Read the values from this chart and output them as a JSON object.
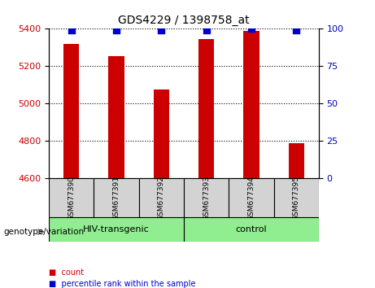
{
  "title": "GDS4229 / 1398758_at",
  "categories": [
    "GSM677390",
    "GSM677391",
    "GSM677392",
    "GSM677393",
    "GSM677394",
    "GSM677395"
  ],
  "count_values": [
    5320,
    5255,
    5075,
    5345,
    5390,
    4790
  ],
  "percentile_values": [
    99,
    99,
    99,
    99,
    100,
    99
  ],
  "ylim_left": [
    4600,
    5400
  ],
  "ylim_right": [
    0,
    100
  ],
  "yticks_left": [
    4600,
    4800,
    5000,
    5200,
    5400
  ],
  "yticks_right": [
    0,
    25,
    50,
    75,
    100
  ],
  "groups": [
    {
      "label": "HIV-transgenic",
      "start": 0,
      "end": 3,
      "color": "#90EE90"
    },
    {
      "label": "control",
      "start": 3,
      "end": 6,
      "color": "#90EE90"
    }
  ],
  "group_label_prefix": "genotype/variation",
  "bar_color_red": "#CC0000",
  "bar_color_blue": "#0000CC",
  "bar_width": 0.35,
  "background_plot": "#ffffff",
  "tick_color_left": "#CC0000",
  "tick_color_right": "#0000CC",
  "legend_items": [
    {
      "label": "count",
      "color": "#CC0000"
    },
    {
      "label": "percentile rank within the sample",
      "color": "#0000CC"
    }
  ],
  "grid_color": "#000000",
  "grid_linestyle": "dotted"
}
